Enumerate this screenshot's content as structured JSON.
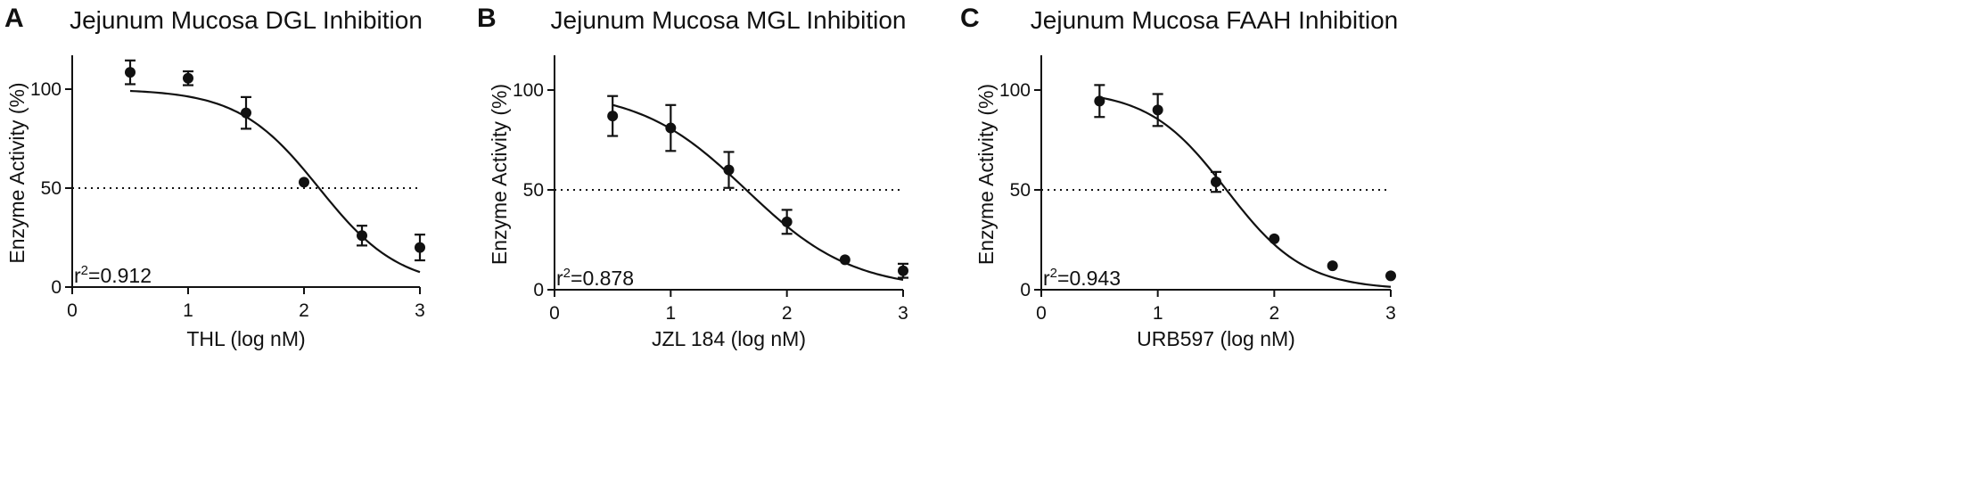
{
  "chart_data": [
    {
      "panel": "A",
      "type": "scatter",
      "title": "Jejunum Mucosa DGL Inhibition",
      "xlabel": "THL (log nM)",
      "ylabel": "Enzyme Activity (%)",
      "xlim": [
        0,
        3
      ],
      "ylim": [
        0,
        100
      ],
      "x_ticks": [
        "0",
        "1",
        "2",
        "3"
      ],
      "y_ticks": [
        "0",
        "50",
        "100"
      ],
      "reference_line": 50,
      "r2_prefix": "r",
      "r2_sup": "2",
      "r2_value": "=0.912",
      "points": [
        {
          "x": 0.5,
          "y": 108.5,
          "err": 6
        },
        {
          "x": 1.0,
          "y": 105.5,
          "err": 3.5
        },
        {
          "x": 1.5,
          "y": 88,
          "err": 8
        },
        {
          "x": 2.0,
          "y": 53,
          "err": 0
        },
        {
          "x": 2.5,
          "y": 26,
          "err": 5
        },
        {
          "x": 3.0,
          "y": 20,
          "err": 6.5
        }
      ],
      "fit": {
        "top": 100,
        "bottom": 0,
        "log_ic50": 2.13,
        "hill": 1.25,
        "x_start": 0.5,
        "x_end": 3.0
      }
    },
    {
      "panel": "B",
      "type": "scatter",
      "title": "Jejunum Mucosa MGL Inhibition",
      "xlabel": "JZL 184 (log nM)",
      "ylabel": "Enzyme Activity (%)",
      "xlim": [
        0,
        3
      ],
      "ylim": [
        0,
        100
      ],
      "x_ticks": [
        "0",
        "1",
        "2",
        "3"
      ],
      "y_ticks": [
        "0",
        "50",
        "100"
      ],
      "reference_line": 50,
      "r2_prefix": "r",
      "r2_sup": "2",
      "r2_value": "=0.878",
      "points": [
        {
          "x": 0.5,
          "y": 87,
          "err": 10
        },
        {
          "x": 1.0,
          "y": 81,
          "err": 11.5
        },
        {
          "x": 1.5,
          "y": 60,
          "err": 9
        },
        {
          "x": 2.0,
          "y": 34,
          "err": 6
        },
        {
          "x": 2.5,
          "y": 15,
          "err": 0
        },
        {
          "x": 3.0,
          "y": 9.5,
          "err": 3.5
        }
      ],
      "fit": {
        "top": 100,
        "bottom": 0,
        "log_ic50": 1.65,
        "hill": 0.95,
        "x_start": 0.5,
        "x_end": 3.0
      }
    },
    {
      "panel": "C",
      "type": "scatter",
      "title": "Jejunum Mucosa FAAH Inhibition",
      "xlabel": "URB597 (log nM)",
      "ylabel": "Enzyme Activity (%)",
      "xlim": [
        0,
        3
      ],
      "ylim": [
        0,
        100
      ],
      "x_ticks": [
        "0",
        "1",
        "2",
        "3"
      ],
      "y_ticks": [
        "0",
        "50",
        "100"
      ],
      "reference_line": 50,
      "r2_prefix": "r",
      "r2_sup": "2",
      "r2_value": "=0.943",
      "points": [
        {
          "x": 0.5,
          "y": 94.5,
          "err": 8
        },
        {
          "x": 1.0,
          "y": 90,
          "err": 8
        },
        {
          "x": 1.5,
          "y": 54,
          "err": 5
        },
        {
          "x": 2.0,
          "y": 25.5,
          "err": 0
        },
        {
          "x": 2.5,
          "y": 12,
          "err": 0
        },
        {
          "x": 3.0,
          "y": 7,
          "err": 0
        }
      ],
      "fit": {
        "top": 100,
        "bottom": 0,
        "log_ic50": 1.59,
        "hill": 1.3,
        "x_start": 0.5,
        "x_end": 3.0
      }
    }
  ]
}
